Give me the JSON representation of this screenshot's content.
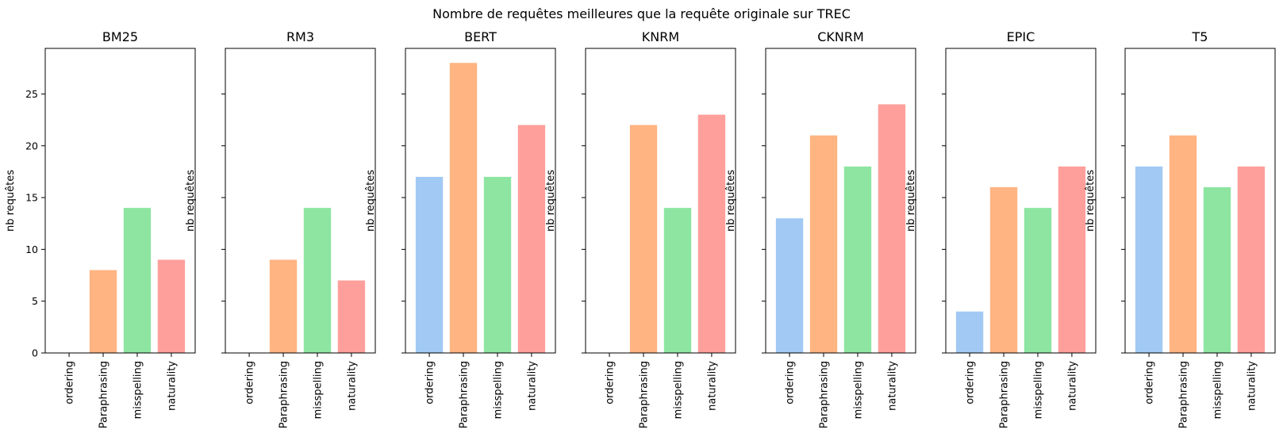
{
  "figure": {
    "suptitle": "Nombre de requêtes meilleures que la requête originale sur TREC"
  },
  "colors": {
    "ordering": "#a1c9f4",
    "Paraphrasing": "#ffb482",
    "misspelling": "#8de5a1",
    "naturality": "#ff9f9b",
    "axis": "#000000"
  },
  "chart_data": [
    {
      "type": "bar",
      "title": "BM25",
      "xlabel": "",
      "ylabel": "nb requêtes",
      "categories": [
        "ordering",
        "Paraphrasing",
        "misspelling",
        "naturality"
      ],
      "values": [
        0,
        8,
        14,
        9
      ],
      "ylim": [
        0,
        29.4
      ],
      "yticks": [
        0,
        5,
        10,
        15,
        20,
        25
      ],
      "grid": false
    },
    {
      "type": "bar",
      "title": "RM3",
      "xlabel": "",
      "ylabel": "nb requêtes",
      "categories": [
        "ordering",
        "Paraphrasing",
        "misspelling",
        "naturality"
      ],
      "values": [
        0,
        9,
        14,
        7
      ],
      "ylim": [
        0,
        29.4
      ],
      "yticks": [
        0,
        5,
        10,
        15,
        20,
        25
      ],
      "grid": false
    },
    {
      "type": "bar",
      "title": "BERT",
      "xlabel": "",
      "ylabel": "nb requêtes",
      "categories": [
        "ordering",
        "Paraphrasing",
        "misspelling",
        "naturality"
      ],
      "values": [
        17,
        28,
        17,
        22
      ],
      "ylim": [
        0,
        29.4
      ],
      "yticks": [
        0,
        5,
        10,
        15,
        20,
        25
      ],
      "grid": false
    },
    {
      "type": "bar",
      "title": "KNRM",
      "xlabel": "",
      "ylabel": "nb requêtes",
      "categories": [
        "ordering",
        "Paraphrasing",
        "misspelling",
        "naturality"
      ],
      "values": [
        0,
        22,
        14,
        23
      ],
      "ylim": [
        0,
        29.4
      ],
      "yticks": [
        0,
        5,
        10,
        15,
        20,
        25
      ],
      "grid": false
    },
    {
      "type": "bar",
      "title": "CKNRM",
      "xlabel": "",
      "ylabel": "nb requêtes",
      "categories": [
        "ordering",
        "Paraphrasing",
        "misspelling",
        "naturality"
      ],
      "values": [
        13,
        21,
        18,
        24
      ],
      "ylim": [
        0,
        29.4
      ],
      "yticks": [
        0,
        5,
        10,
        15,
        20,
        25
      ],
      "grid": false
    },
    {
      "type": "bar",
      "title": "EPIC",
      "xlabel": "",
      "ylabel": "nb requêtes",
      "categories": [
        "ordering",
        "Paraphrasing",
        "misspelling",
        "naturality"
      ],
      "values": [
        4,
        16,
        14,
        18
      ],
      "ylim": [
        0,
        29.4
      ],
      "yticks": [
        0,
        5,
        10,
        15,
        20,
        25
      ],
      "grid": false
    },
    {
      "type": "bar",
      "title": "T5",
      "xlabel": "",
      "ylabel": "nb requêtes",
      "categories": [
        "ordering",
        "Paraphrasing",
        "misspelling",
        "naturality"
      ],
      "values": [
        18,
        21,
        16,
        18
      ],
      "ylim": [
        0,
        29.4
      ],
      "yticks": [
        0,
        5,
        10,
        15,
        20,
        25
      ],
      "grid": false
    }
  ]
}
